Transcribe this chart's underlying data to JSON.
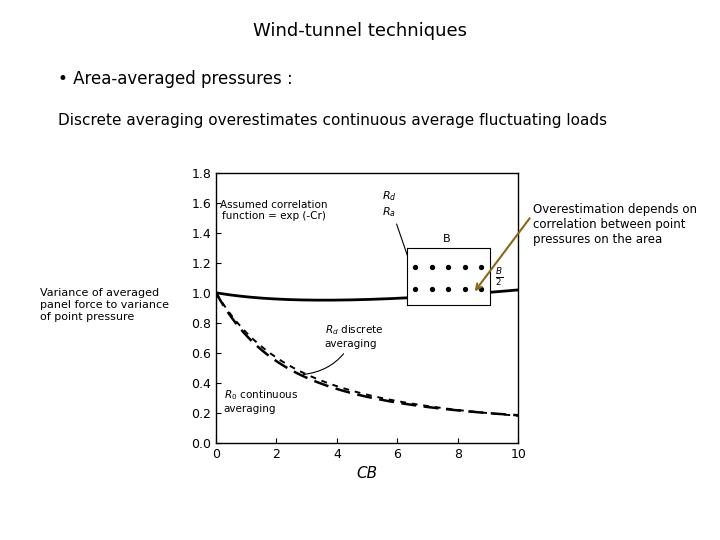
{
  "title": "Wind-tunnel techniques",
  "bullet": "Area-averaged pressures :",
  "subtitle": "Discrete averaging overestimates continuous average fluctuating loads",
  "annotation_text": "Overestimation depends on\ncorrelation between point\npressures on the area",
  "xlabel": "CB",
  "ylabel_text": "Variance of averaged\npanel force to variance\nof point pressure",
  "xlim": [
    0,
    10
  ],
  "ylim": [
    0,
    1.8
  ],
  "yticks": [
    0,
    0.2,
    0.4,
    0.6,
    0.8,
    1.0,
    1.2,
    1.4,
    1.6,
    1.8
  ],
  "xticks": [
    0,
    2,
    4,
    6,
    8,
    10
  ],
  "bg_color": "#ffffff",
  "text_color": "#000000",
  "curve_color": "#000000",
  "arrow_color": "#8B6914"
}
